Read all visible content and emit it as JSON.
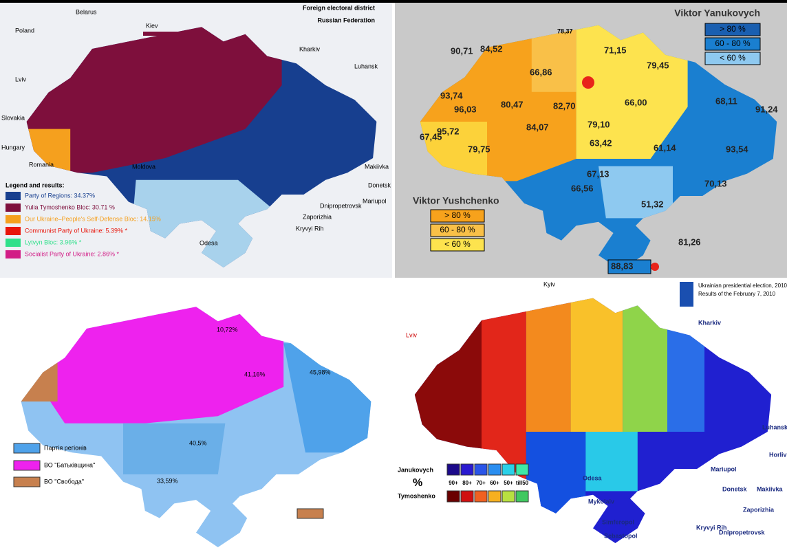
{
  "top_left": {
    "places": [
      "Belarus",
      "Poland",
      "Kiev",
      "Foreign electoral district",
      "Russian Federation",
      "Kharkiv",
      "Luhansk",
      "Lviv",
      "Slovakia",
      "Hungary",
      "Romania",
      "Moldova",
      "Makiivka",
      "Donetsk",
      "Mariupol",
      "Dnipropetrovsk",
      "Zaporizhia",
      "Kryvyi Rih",
      "Odesa"
    ],
    "legend_title": "Legend and results:",
    "legend": [
      "Party of Regions: 34.37%",
      "Yulia Tymoshenko Bloc: 30.71 %",
      "Our Ukraine–People's Self-Defense Bloc: 14.15%",
      "Communist Party of Ukraine: 5.39% *",
      "Lytvyn Bloc: 3.96% *",
      "Socialist Party of Ukraine: 2.86% *"
    ]
  },
  "top_right": {
    "winner_east": "Viktor Yanukovych",
    "legend_east": [
      "> 80 %",
      "60 - 80 %",
      "< 60 %"
    ],
    "winner_west": "Viktor Yushchenko",
    "legend_west": [
      "> 80 %",
      "60 - 80 %",
      "< 60 %"
    ],
    "regions": [
      "90,71",
      "84,52",
      "66,86",
      "78,37",
      "71,15",
      "79,45",
      "93,74",
      "96,03",
      "80,47",
      "82,70",
      "66,00",
      "68,11",
      "91,24",
      "67,45",
      "95,72",
      "84,07",
      "79,10",
      "63,42",
      "61,14",
      "93,54",
      "79,75",
      "67,13",
      "70,13",
      "66,56",
      "51,32",
      "81,26",
      "88,83"
    ]
  },
  "bottom_left": {
    "regions": [
      "10,72%",
      "41,16%",
      "45,98%",
      "40,5%",
      "33,59%"
    ],
    "legend": [
      "Партія регіонів",
      "ВО \"Батьківщина\"",
      "ВО \"Свобода\""
    ]
  },
  "bottom_right": {
    "title": "Ukrainian presidential election, 2010",
    "subtitle": "Results of the February 7, 2010",
    "places": [
      "Kyiv",
      "Lviv",
      "Kharkiv",
      "Luhansk",
      "Horlivka",
      "Mariupol",
      "Donetsk",
      "Makiivka",
      "Odesa",
      "Mykolaiv",
      "Zaporizhia",
      "Simferopol",
      "Sebastopol",
      "Kryvyi Rih",
      "Dnipropetrovsk"
    ],
    "legend_rows": [
      "Janukovych",
      "Tymoshenko"
    ],
    "legend_unit": "%",
    "legend_steps": [
      "90+",
      "80+",
      "70+",
      "60+",
      "50+",
      "till50"
    ]
  }
}
